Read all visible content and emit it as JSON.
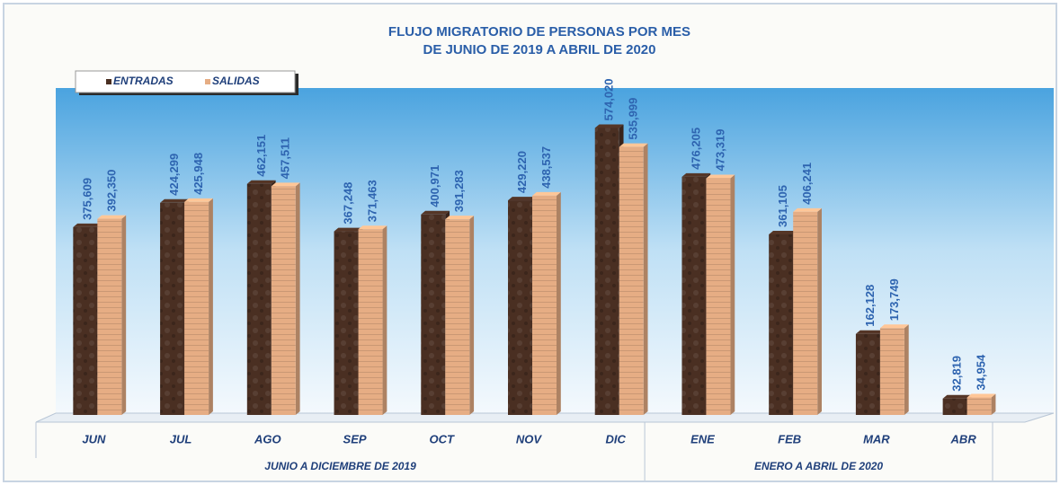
{
  "chart_data": {
    "type": "bar",
    "title": [
      "FLUJO MIGRATORIO DE PERSONAS POR MES",
      "DE JUNIO DE 2019 A ABRIL DE 2020"
    ],
    "categories": [
      "JUN",
      "JUL",
      "AGO",
      "SEP",
      "OCT",
      "NOV",
      "DIC",
      "ENE",
      "FEB",
      "MAR",
      "ABR"
    ],
    "groups": [
      {
        "label": "JUNIO A DICIEMBRE DE 2019",
        "span": 7
      },
      {
        "label": "ENERO A ABRIL DE 2020",
        "span": 4
      }
    ],
    "series": [
      {
        "name": "ENTRADAS",
        "color": "#4a2f22",
        "values": [
          375609,
          424299,
          462151,
          367248,
          400971,
          429220,
          574020,
          476205,
          361105,
          162128,
          32819
        ],
        "value_labels": [
          "375,609",
          "424,299",
          "462,151",
          "367,248",
          "400,971",
          "429,220",
          "574,020",
          "476,205",
          "361,105",
          "162,128",
          "32,819"
        ]
      },
      {
        "name": "SALIDAS",
        "color": "#e6ad84",
        "values": [
          392350,
          425948,
          457511,
          371463,
          391283,
          438537,
          535999,
          473319,
          406241,
          173749,
          34954
        ],
        "value_labels": [
          "392,350",
          "425,948",
          "457,511",
          "371,463",
          "391,283",
          "438,537",
          "535,999",
          "473,319",
          "406,241",
          "173,749",
          "34,954"
        ]
      }
    ],
    "ylim": [
      0,
      600000
    ],
    "legend": "top-left"
  }
}
